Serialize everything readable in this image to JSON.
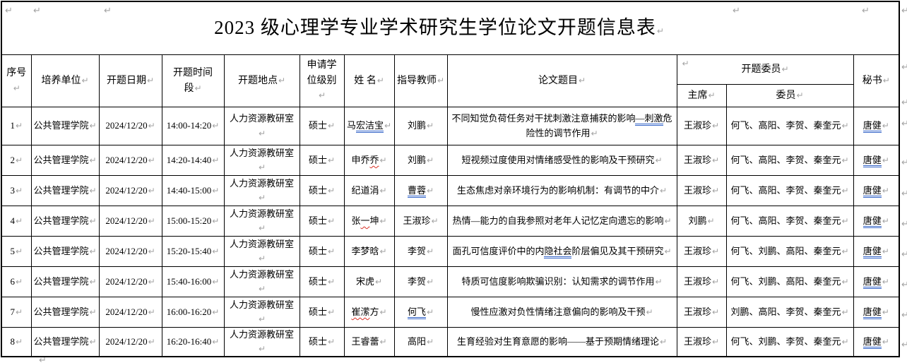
{
  "title": {
    "text": "2023 级心理学专业学术研究生学位论文开题信息表"
  },
  "headers": {
    "seq": "序号",
    "unit": "培养单位",
    "date": "开题日期",
    "time": "开题时间段",
    "place": "开题地点",
    "degree": "申请学位级别",
    "name": "姓 名",
    "advisor": "指导教师",
    "thesis": "论文题目",
    "committee": "开题委员",
    "chair": "主席",
    "members": "委员",
    "secretary": "秘书"
  },
  "mark_glyph": "↵",
  "colors": {
    "paragraph_mark": "#a3a3a3",
    "grammar_underline_blue": "#3565c8",
    "spellcheck_wavy_red": "#d93025",
    "border": "#000000",
    "background": "#ffffff"
  },
  "rows": [
    {
      "seq": "1",
      "unit": "公共管理学院",
      "date": "2024/12/20",
      "time": "14:00-14:20",
      "place": "人力资源教研室",
      "degree": "硕士",
      "name": [
        {
          "t": "马"
        },
        {
          "t": "宏洁宝",
          "u": "blue"
        }
      ],
      "advisor": [
        {
          "t": "刘鹏"
        }
      ],
      "thesis": [
        {
          "t": "不同知觉负荷任务对干扰刺激注意捕获的影响"
        },
        {
          "t": "—刺激",
          "u": "blue"
        },
        {
          "t": "危险性的调节作用"
        }
      ],
      "chair": "王淑珍",
      "members": "何飞、高阳、李贺、秦奎元",
      "secretary": [
        {
          "t": "唐健",
          "u": "blue"
        }
      ]
    },
    {
      "seq": "2",
      "unit": "公共管理学院",
      "date": "2024/12/20",
      "time": "14:20-14:40",
      "place": "人力资源教研室",
      "degree": "硕士",
      "name": [
        {
          "t": "申乔"
        },
        {
          "t": "乔",
          "u": "red"
        }
      ],
      "advisor": [
        {
          "t": "刘鹏"
        }
      ],
      "thesis": [
        {
          "t": "短视频过度使用对情绪感受性的影响及干预研究"
        }
      ],
      "chair": "王淑珍",
      "members": "何飞、高阳、李贺、秦奎元",
      "secretary": [
        {
          "t": "唐健",
          "u": "blue"
        }
      ]
    },
    {
      "seq": "3",
      "unit": "公共管理学院",
      "date": "2024/12/20",
      "time": "14:40-15:00",
      "place": "人力资源教研室",
      "degree": "硕士",
      "name": [
        {
          "t": "纪道涓"
        }
      ],
      "advisor": [
        {
          "t": "曹蓉",
          "u": "blue"
        }
      ],
      "thesis": [
        {
          "t": "生态焦虑对亲环境行为的影响机制：有调节的中介"
        }
      ],
      "chair": "王淑珍",
      "members": "何飞、高阳、李贺、秦奎元",
      "secretary": [
        {
          "t": "唐健",
          "u": "blue"
        }
      ]
    },
    {
      "seq": "4",
      "unit": "公共管理学院",
      "date": "2024/12/20",
      "time": "15:00-15:20",
      "place": "人力资源教研室",
      "degree": "硕士",
      "name": [
        {
          "t": "张"
        },
        {
          "t": "一",
          "u": "red"
        },
        {
          "t": "坤"
        }
      ],
      "advisor": [
        {
          "t": "王淑珍"
        }
      ],
      "thesis": [
        {
          "t": "热情—能力的自我参照对老年人记忆定向遗忘的影响"
        }
      ],
      "chair": "刘鹏",
      "members": "何飞、高阳、李贺、秦奎元",
      "secretary": [
        {
          "t": "唐健",
          "u": "blue"
        }
      ]
    },
    {
      "seq": "5",
      "unit": "公共管理学院",
      "date": "2024/12/20",
      "time": "15:20-15:40",
      "place": "人力资源教研室",
      "degree": "硕士",
      "name": [
        {
          "t": "李梦晗"
        }
      ],
      "advisor": [
        {
          "t": "李贺"
        }
      ],
      "thesis": [
        {
          "t": "面孔可信度评价中的内"
        },
        {
          "t": "隐社会",
          "u": "blue"
        },
        {
          "t": "阶层偏见及其干预研究"
        }
      ],
      "chair": "王淑珍",
      "members": "何飞、刘鹏、高阳、秦奎元",
      "secretary": [
        {
          "t": "唐健",
          "u": "blue"
        }
      ]
    },
    {
      "seq": "6",
      "unit": "公共管理学院",
      "date": "2024/12/20",
      "time": "15:40-16:00",
      "place": "人力资源教研室",
      "degree": "硕士",
      "name": [
        {
          "t": "宋虎"
        }
      ],
      "advisor": [
        {
          "t": "李贺"
        }
      ],
      "thesis": [
        {
          "t": "特质可信度影响欺骗识别：认知需求的调节作用"
        }
      ],
      "chair": "王淑珍",
      "members": "何飞、刘鹏、高阳、秦奎元",
      "secretary": [
        {
          "t": "唐健",
          "u": "blue"
        }
      ]
    },
    {
      "seq": "7",
      "unit": "公共管理学院",
      "date": "2024/12/20",
      "time": "16:00-16:20",
      "place": "人力资源教研室",
      "degree": "硕士",
      "name": [
        {
          "t": "崔潆",
          "u": "red"
        },
        {
          "t": "方"
        }
      ],
      "advisor": [
        {
          "t": "何飞",
          "u": "blue"
        }
      ],
      "thesis": [
        {
          "t": "慢性应激对负性情绪注意偏向的影响及干预"
        }
      ],
      "chair": "王淑珍",
      "members": "刘鹏、高阳、李贺、秦奎元",
      "secretary": [
        {
          "t": "唐健",
          "u": "blue"
        }
      ]
    },
    {
      "seq": "8",
      "unit": "公共管理学院",
      "date": "2024/12/20",
      "time": "16:20-16:40",
      "place": "人力资源教研室",
      "degree": "硕士",
      "name": [
        {
          "t": "王睿蕾"
        }
      ],
      "advisor": [
        {
          "t": "高阳"
        }
      ],
      "thesis": [
        {
          "t": "生育经验对生育意愿的影响——基于预期情绪理论"
        }
      ],
      "chair": "王淑珍",
      "members": "何飞、刘鹏、李贺、秦奎元",
      "secretary": [
        {
          "t": "唐健",
          "u": "blue"
        }
      ]
    }
  ]
}
